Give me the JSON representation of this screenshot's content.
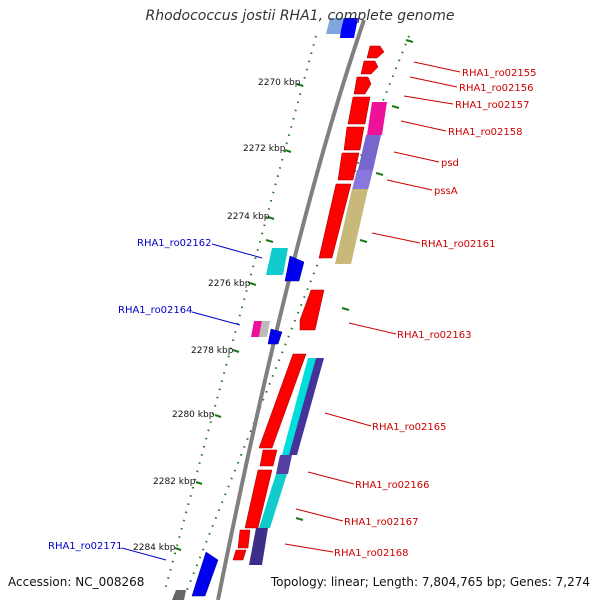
{
  "title": "Rhodococcus jostii RHA1, complete genome",
  "footer": {
    "accession": "Accession: NC_008268",
    "summary": "Topology: linear; Length: 7,804,765 bp; Genes: 7,274"
  },
  "colors": {
    "forward_label": "#cc0000",
    "reverse_label": "#0000cc",
    "tick": "#1a7a1a",
    "backbone": "#808080"
  },
  "ticks": [
    "2270 kbp",
    "2272 kbp",
    "2274 kbp",
    "2276 kbp",
    "2278 kbp",
    "2280 kbp",
    "2282 kbp",
    "2284 kbp"
  ],
  "forward_genes": [
    "RHA1_ro02155",
    "RHA1_ro02156",
    "RHA1_ro02157",
    "RHA1_ro02158",
    "psd",
    "pssA",
    "RHA1_ro02161",
    "RHA1_ro02163",
    "RHA1_ro02165",
    "RHA1_ro02166",
    "RHA1_ro02167",
    "RHA1_ro02168"
  ],
  "reverse_genes": [
    "RHA1_ro02162",
    "RHA1_ro02164",
    "RHA1_ro02171"
  ]
}
